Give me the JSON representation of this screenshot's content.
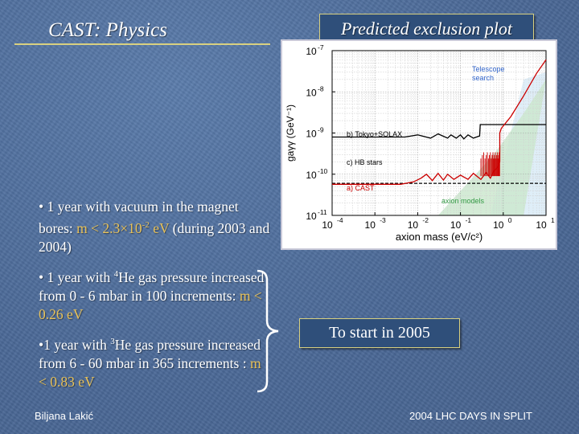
{
  "slide": {
    "title": "CAST: Physics",
    "plot_heading": "Predicted exclusion plot",
    "bullets": [
      {
        "prefix": "• 1 year with vacuum in the magnet bores: ",
        "highlight": "m < 2.3×10",
        "sup": "-2",
        "highlight_end": " eV",
        "suffix": " (during 2003 and 2004)"
      },
      {
        "prefix": "• 1 year with ",
        "sup": "4",
        "middle": "He gas pressure increased from 0 - 6 mbar in 100 increments: ",
        "highlight": "m < 0.26 eV"
      },
      {
        "prefix": "•1 year with ",
        "sup": "3",
        "middle": "He gas pressure increased from 6 - 60 mbar in 365 increments : ",
        "highlight": "m < 0.83 eV"
      }
    ],
    "start_note": "To start in 2005",
    "footer_left": "Biljana Lakić",
    "footer_right": "2004 LHC DAYS IN SPLIT"
  },
  "chart_data": {
    "type": "line",
    "ylabel": "gaγγ (GeV⁻¹)",
    "xlabel": "axion mass (eV/c²)",
    "x_scale": "log",
    "y_scale": "log",
    "xlim": [
      0.0001,
      10
    ],
    "ylim": [
      1e-11,
      1e-07
    ],
    "x_ticks": [
      {
        "value": 0.0001,
        "base": "10",
        "exp": "-4"
      },
      {
        "value": 0.001,
        "base": "10",
        "exp": "-3"
      },
      {
        "value": 0.01,
        "base": "10",
        "exp": "-2"
      },
      {
        "value": 0.1,
        "base": "10",
        "exp": "-1"
      },
      {
        "value": 1,
        "base": "10",
        "exp": "0"
      },
      {
        "value": 10,
        "base": "10",
        "exp": "1"
      }
    ],
    "y_ticks": [
      {
        "value": 1e-07,
        "base": "10",
        "exp": "-7"
      },
      {
        "value": 1e-08,
        "base": "10",
        "exp": "-8"
      },
      {
        "value": 1e-09,
        "base": "10",
        "exp": "-9"
      },
      {
        "value": 1e-10,
        "base": "10",
        "exp": "-10"
      },
      {
        "value": 1e-11,
        "base": "10",
        "exp": "-11"
      }
    ],
    "grid": true,
    "series": [
      {
        "name": "b) Tokyo+SOLAX",
        "color": "#000000",
        "points": [
          [
            0.0001,
            8e-10
          ],
          [
            0.005,
            8e-10
          ],
          [
            0.01,
            9e-10
          ],
          [
            0.02,
            7.5e-10
          ],
          [
            0.03,
            9.5e-10
          ],
          [
            0.05,
            7.5e-10
          ],
          [
            0.06,
            9e-10
          ],
          [
            0.08,
            7.5e-10
          ],
          [
            0.1,
            9e-10
          ],
          [
            0.12,
            7.2e-10
          ],
          [
            0.15,
            9e-10
          ],
          [
            0.2,
            7.5e-10
          ],
          [
            0.28,
            8.5e-10
          ],
          [
            0.29,
            1.6e-09
          ],
          [
            10,
            1.6e-09
          ]
        ]
      },
      {
        "name": "c) HB stars",
        "color": "#000000",
        "dashed": true,
        "points": [
          [
            0.0001,
            6e-11
          ],
          [
            10,
            6e-11
          ]
        ]
      },
      {
        "name": "a) CAST",
        "color": "#cc0000",
        "points": [
          [
            0.0001,
            5.7e-11
          ],
          [
            0.004,
            5.7e-11
          ],
          [
            0.008,
            6.5e-11
          ],
          [
            0.012,
            8e-11
          ],
          [
            0.016,
            1e-10
          ],
          [
            0.022,
            7e-11
          ],
          [
            0.03,
            1.05e-10
          ],
          [
            0.04,
            7.2e-11
          ],
          [
            0.05,
            1e-10
          ],
          [
            0.07,
            7.5e-11
          ],
          [
            0.1,
            9.5e-11
          ],
          [
            0.15,
            7.5e-11
          ],
          [
            0.2,
            1.05e-10
          ],
          [
            0.3,
            7.5e-11
          ],
          [
            0.4,
            1.1e-10
          ],
          [
            0.5,
            8e-11
          ],
          [
            0.6,
            1.2e-10
          ],
          [
            0.75,
            1.5e-10
          ],
          [
            0.83,
            2e-10
          ],
          [
            0.83,
            1e-09
          ],
          [
            0.9,
            1.3e-09
          ],
          [
            1.5,
            2.5e-09
          ],
          [
            3,
            8e-09
          ],
          [
            6,
            2.8e-08
          ],
          [
            10,
            6e-08
          ]
        ]
      },
      {
        "name": "Telescope search",
        "color": "#aaccee",
        "points": []
      }
    ],
    "annotations": [
      {
        "text": "Telescope",
        "color": "#3366cc"
      },
      {
        "text": "search",
        "color": "#3366cc"
      },
      {
        "text": "b) Tokyo+SOLAX",
        "color": "#000000"
      },
      {
        "text": "c) HB  stars",
        "color": "#000000"
      },
      {
        "text": "a) CAST",
        "color": "#cc0000"
      },
      {
        "text": "axion models",
        "color": "#339944"
      }
    ]
  }
}
